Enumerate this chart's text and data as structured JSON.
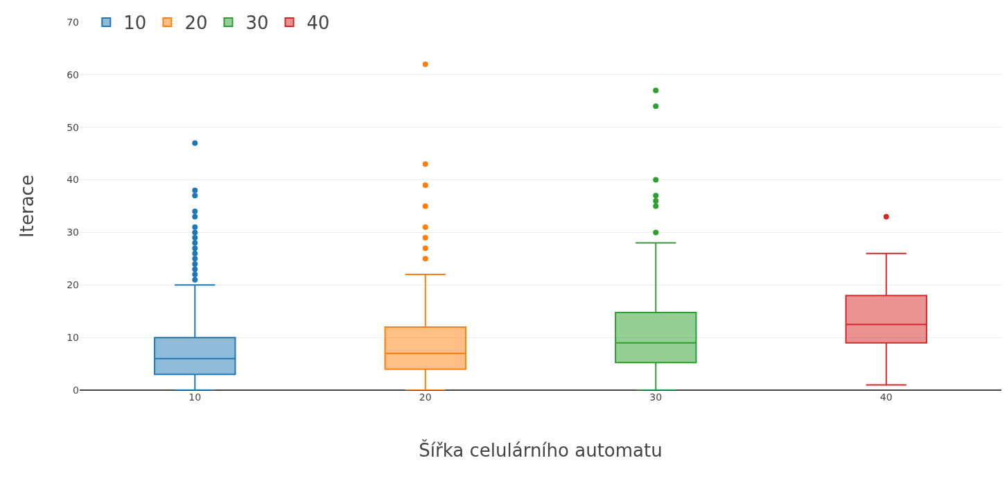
{
  "chart_data": {
    "type": "box",
    "xlabel": "Šířka celulárního automatu",
    "ylabel": "Iterace",
    "categories": [
      "10",
      "20",
      "30",
      "40"
    ],
    "series": [
      {
        "name": "10",
        "color": "#1f77b4",
        "boxes": [
          {
            "low": 0,
            "q1": 3,
            "median": 6,
            "q3": 10,
            "high": 20,
            "outliers": [
              21,
              22,
              23,
              24,
              25,
              26,
              27,
              28,
              29,
              30,
              31,
              33,
              34,
              37,
              38,
              47
            ]
          },
          null,
          null,
          null
        ]
      },
      {
        "name": "20",
        "color": "#ff7f0e",
        "boxes": [
          null,
          {
            "low": 0,
            "q1": 4,
            "median": 7,
            "q3": 12,
            "high": 22,
            "outliers": [
              25,
              27,
              29,
              31,
              35,
              39,
              43,
              62
            ]
          },
          null,
          null
        ]
      },
      {
        "name": "30",
        "color": "#2ca02c",
        "boxes": [
          null,
          null,
          {
            "low": 0,
            "q1": 5.25,
            "median": 9,
            "q3": 14.75,
            "high": 28,
            "outliers": [
              30,
              35,
              36,
              37,
              40,
              54,
              57
            ]
          },
          null
        ]
      },
      {
        "name": "40",
        "color": "#d62728",
        "boxes": [
          null,
          null,
          null,
          {
            "low": 1,
            "q1": 9,
            "median": 12.5,
            "q3": 18,
            "high": 26,
            "outliers": [
              33
            ]
          }
        ]
      }
    ],
    "ylim": [
      0,
      70
    ],
    "yticks": [
      0,
      10,
      20,
      30,
      40,
      50,
      60,
      70
    ],
    "grid": "y",
    "legend": "top left",
    "marker": "circle"
  }
}
